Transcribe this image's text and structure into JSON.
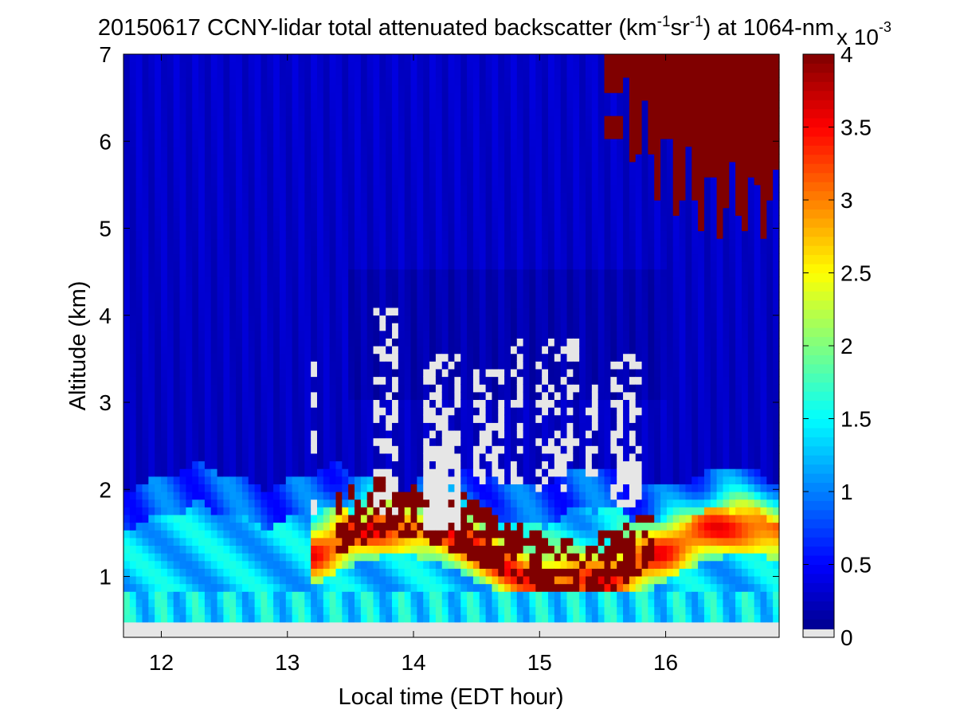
{
  "chart_data": {
    "type": "heatmap",
    "title_parts": {
      "prefix": "20150617 CCNY-lidar total attenuated backscatter (km",
      "sup1": "-1",
      "mid1": "sr",
      "sup2": "-1",
      "suffix": ") at 1064-nm"
    },
    "xlabel": "Local time (EDT hour)",
    "ylabel": "Altitude (km)",
    "xlim": [
      11.7,
      16.9
    ],
    "ylim": [
      0.3,
      7.0
    ],
    "xticks": [
      12,
      13,
      14,
      15,
      16
    ],
    "yticks": [
      1,
      2,
      3,
      4,
      5,
      6,
      7
    ],
    "colorbar": {
      "min": 0,
      "max": 4,
      "ticks": [
        "0",
        "0.5",
        "1",
        "1.5",
        "2",
        "2.5",
        "3",
        "3.5",
        "4"
      ],
      "exponent_base": "x 10",
      "exponent": "-3",
      "colormap": "jet",
      "undefined_color": "#e6e6e6"
    },
    "features": {
      "boundary_layer_top_km": 2.15,
      "surface_gap_below_km": 0.45,
      "high_cloud": {
        "time_start": 15.5,
        "time_end": 16.9,
        "base_km": 5.2,
        "top_km": 7.0
      },
      "saturated_aerosol_top_km": 2.2,
      "missing_data_columns": [
        {
          "t0": 13.2,
          "t1": 13.22,
          "z0": 1.6,
          "z1": 3.5
        },
        {
          "t0": 13.52,
          "t1": 13.55,
          "z0": 1.9,
          "z1": 3.2
        },
        {
          "t0": 13.66,
          "t1": 13.86,
          "z0": 1.7,
          "z1": 4.1
        },
        {
          "t0": 14.07,
          "t1": 14.35,
          "z0": 1.55,
          "z1": 3.6
        },
        {
          "t0": 14.45,
          "t1": 14.7,
          "z0": 2.0,
          "z1": 3.4
        },
        {
          "t0": 14.78,
          "t1": 14.85,
          "z0": 2.1,
          "z1": 3.7
        },
        {
          "t0": 14.98,
          "t1": 15.3,
          "z0": 2.0,
          "z1": 3.7
        },
        {
          "t0": 15.38,
          "t1": 15.45,
          "z0": 2.1,
          "z1": 3.4
        },
        {
          "t0": 15.58,
          "t1": 15.8,
          "z0": 1.8,
          "z1": 3.6
        }
      ]
    }
  }
}
